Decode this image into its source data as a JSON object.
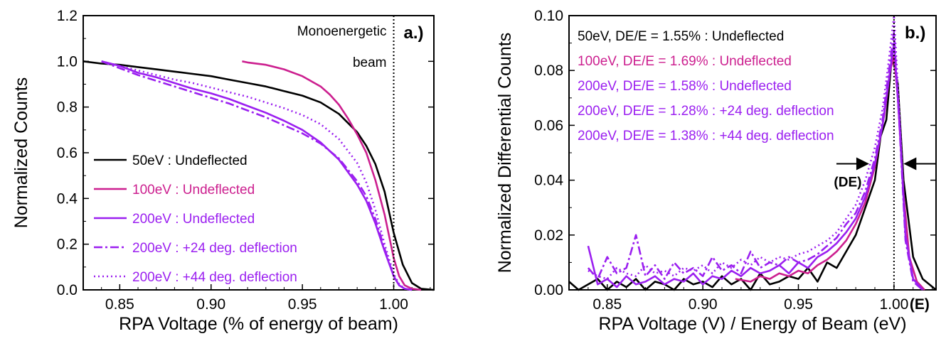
{
  "chart_data": [
    {
      "type": "line",
      "panel_label": "a.)",
      "xlabel": "RPA Voltage (% of energy of beam)",
      "ylabel": "Normalized Counts",
      "xlim": [
        0.83,
        1.022
      ],
      "ylim": [
        0.0,
        1.2
      ],
      "xticks": [
        "0.85",
        "0.90",
        "0.95",
        "1.00"
      ],
      "yticks": [
        "0.0",
        "0.2",
        "0.4",
        "0.6",
        "0.8",
        "1.0",
        "1.2"
      ],
      "legend_position": "lower-left",
      "annotation": {
        "text_line1": "Monoenergetic",
        "text_line2": "beam",
        "x": 1.0
      },
      "series": [
        {
          "name": "50eV : Undeflected",
          "color": "#000000",
          "dash": "solid",
          "x": [
            0.83,
            0.84,
            0.85,
            0.86,
            0.87,
            0.88,
            0.89,
            0.9,
            0.91,
            0.92,
            0.93,
            0.94,
            0.95,
            0.96,
            0.97,
            0.975,
            0.98,
            0.985,
            0.99,
            0.995,
            1.0,
            1.005,
            1.01,
            1.015,
            1.022
          ],
          "y": [
            1.0,
            0.99,
            0.985,
            0.975,
            0.965,
            0.955,
            0.945,
            0.935,
            0.92,
            0.905,
            0.89,
            0.87,
            0.85,
            0.82,
            0.77,
            0.73,
            0.69,
            0.63,
            0.55,
            0.43,
            0.25,
            0.11,
            0.03,
            0.005,
            0.0
          ]
        },
        {
          "name": "100eV : Undeflected",
          "color": "#cc1f8f",
          "dash": "solid",
          "x": [
            0.917,
            0.92,
            0.93,
            0.94,
            0.95,
            0.96,
            0.965,
            0.97,
            0.975,
            0.98,
            0.985,
            0.99,
            0.995,
            1.0,
            1.003,
            1.006,
            1.01,
            1.015
          ],
          "y": [
            1.0,
            0.995,
            0.985,
            0.965,
            0.935,
            0.89,
            0.855,
            0.81,
            0.75,
            0.68,
            0.6,
            0.48,
            0.33,
            0.14,
            0.06,
            0.02,
            0.005,
            0.0
          ]
        },
        {
          "name": "200eV : Undeflected",
          "color": "#9b1ff0",
          "dash": "solid",
          "x": [
            0.84,
            0.85,
            0.86,
            0.87,
            0.88,
            0.89,
            0.9,
            0.91,
            0.92,
            0.93,
            0.94,
            0.95,
            0.96,
            0.97,
            0.98,
            0.985,
            0.99,
            0.995,
            1.0,
            1.003,
            1.006,
            1.01
          ],
          "y": [
            1.0,
            0.98,
            0.95,
            0.93,
            0.905,
            0.88,
            0.86,
            0.835,
            0.805,
            0.775,
            0.74,
            0.7,
            0.645,
            0.57,
            0.46,
            0.39,
            0.29,
            0.17,
            0.06,
            0.02,
            0.005,
            0.0
          ]
        },
        {
          "name": "200eV : +24 deg. deflection",
          "color": "#9b1ff0",
          "dash": "dashdot",
          "x": [
            0.84,
            0.85,
            0.86,
            0.87,
            0.88,
            0.89,
            0.9,
            0.91,
            0.92,
            0.93,
            0.94,
            0.95,
            0.96,
            0.97,
            0.98,
            0.985,
            0.99,
            0.995,
            1.0,
            1.003,
            1.006,
            1.01
          ],
          "y": [
            1.0,
            0.97,
            0.94,
            0.915,
            0.89,
            0.865,
            0.84,
            0.815,
            0.785,
            0.755,
            0.72,
            0.685,
            0.64,
            0.575,
            0.475,
            0.41,
            0.31,
            0.18,
            0.06,
            0.02,
            0.005,
            0.0
          ]
        },
        {
          "name": "200eV : +44 deg. deflection",
          "color": "#9b1ff0",
          "dash": "dotted",
          "x": [
            0.84,
            0.85,
            0.86,
            0.87,
            0.88,
            0.89,
            0.9,
            0.91,
            0.92,
            0.93,
            0.94,
            0.95,
            0.96,
            0.97,
            0.98,
            0.985,
            0.99,
            0.995,
            1.0,
            1.003,
            1.006,
            1.01
          ],
          "y": [
            1.0,
            0.98,
            0.96,
            0.94,
            0.92,
            0.905,
            0.885,
            0.865,
            0.845,
            0.82,
            0.795,
            0.765,
            0.725,
            0.66,
            0.555,
            0.47,
            0.35,
            0.2,
            0.07,
            0.025,
            0.005,
            0.0
          ]
        }
      ]
    },
    {
      "type": "line",
      "panel_label": "b.)",
      "xlabel": "RPA Voltage (V) / Energy of Beam (eV)",
      "ylabel": "Normalized Differential Counts",
      "xlim": [
        0.83,
        1.022
      ],
      "ylim": [
        0.0,
        0.1
      ],
      "xticks": [
        "0.85",
        "0.90",
        "0.95",
        "1.00"
      ],
      "xtick_extra": "(E)",
      "yticks": [
        "0.00",
        "0.02",
        "0.04",
        "0.06",
        "0.08",
        "0.10"
      ],
      "legend_position": "top-left",
      "annotation": {
        "text": "(DE)",
        "x_left": 0.987,
        "x_right": 1.005,
        "y": 0.046
      },
      "series": [
        {
          "name": "50eV, DE/E = 1.55% : Undeflected",
          "color": "#000000",
          "dash": "solid",
          "x": [
            0.83,
            0.835,
            0.84,
            0.845,
            0.85,
            0.855,
            0.86,
            0.865,
            0.87,
            0.875,
            0.88,
            0.885,
            0.89,
            0.895,
            0.9,
            0.905,
            0.91,
            0.915,
            0.92,
            0.925,
            0.93,
            0.935,
            0.94,
            0.945,
            0.95,
            0.955,
            0.96,
            0.965,
            0.97,
            0.975,
            0.98,
            0.985,
            0.99,
            0.993,
            0.996,
            0.999,
            1.002,
            1.005,
            1.01,
            1.015,
            1.022
          ],
          "y": [
            0.003,
            0.0,
            0.002,
            0.004,
            0.0,
            0.003,
            0.001,
            0.004,
            0.0,
            0.003,
            0.002,
            0.0,
            0.004,
            0.002,
            0.003,
            0.001,
            0.005,
            0.002,
            0.004,
            0.0,
            0.006,
            0.002,
            0.003,
            0.005,
            0.004,
            0.008,
            0.003,
            0.01,
            0.008,
            0.014,
            0.02,
            0.03,
            0.04,
            0.056,
            0.062,
            0.086,
            0.075,
            0.04,
            0.012,
            0.004,
            0.0
          ]
        },
        {
          "name": "100eV, DE/E = 1.69% : Undeflected",
          "color": "#cc1f8f",
          "dash": "solid",
          "x": [
            0.917,
            0.925,
            0.93,
            0.935,
            0.94,
            0.945,
            0.95,
            0.955,
            0.96,
            0.965,
            0.97,
            0.975,
            0.98,
            0.985,
            0.99,
            0.995,
            0.998,
            1.0,
            1.002,
            1.005,
            1.008,
            1.012,
            1.016
          ],
          "y": [
            0.004,
            0.003,
            0.005,
            0.004,
            0.006,
            0.005,
            0.007,
            0.006,
            0.009,
            0.011,
            0.014,
            0.018,
            0.024,
            0.032,
            0.045,
            0.064,
            0.08,
            0.085,
            0.07,
            0.035,
            0.012,
            0.003,
            0.0
          ]
        },
        {
          "name": "200eV, DE/E = 1.58% : Undeflected",
          "color": "#9b1ff0",
          "dash": "solid",
          "x": [
            0.84,
            0.845,
            0.85,
            0.855,
            0.86,
            0.865,
            0.87,
            0.875,
            0.88,
            0.885,
            0.89,
            0.895,
            0.9,
            0.905,
            0.91,
            0.915,
            0.92,
            0.925,
            0.93,
            0.935,
            0.94,
            0.945,
            0.95,
            0.955,
            0.96,
            0.965,
            0.97,
            0.975,
            0.98,
            0.985,
            0.99,
            0.994,
            0.997,
            1.0,
            1.003,
            1.006,
            1.01,
            1.015
          ],
          "y": [
            0.016,
            0.002,
            0.004,
            0.001,
            0.005,
            0.002,
            0.003,
            0.005,
            0.002,
            0.004,
            0.003,
            0.006,
            0.002,
            0.005,
            0.004,
            0.007,
            0.005,
            0.008,
            0.006,
            0.007,
            0.009,
            0.006,
            0.01,
            0.008,
            0.012,
            0.014,
            0.017,
            0.021,
            0.026,
            0.034,
            0.046,
            0.06,
            0.075,
            0.09,
            0.06,
            0.02,
            0.004,
            0.0
          ]
        },
        {
          "name": "200eV, DE/E = 1.28% : +24 deg. deflection",
          "color": "#9b1ff0",
          "dash": "dashdot",
          "x": [
            0.84,
            0.845,
            0.85,
            0.855,
            0.86,
            0.865,
            0.87,
            0.875,
            0.88,
            0.885,
            0.89,
            0.895,
            0.9,
            0.905,
            0.91,
            0.915,
            0.92,
            0.925,
            0.93,
            0.935,
            0.94,
            0.945,
            0.95,
            0.955,
            0.96,
            0.965,
            0.97,
            0.975,
            0.98,
            0.985,
            0.99,
            0.994,
            0.997,
            1.0,
            1.003,
            1.006,
            1.01,
            1.015
          ],
          "y": [
            0.008,
            0.004,
            0.012,
            0.006,
            0.008,
            0.02,
            0.005,
            0.009,
            0.004,
            0.01,
            0.006,
            0.008,
            0.005,
            0.012,
            0.007,
            0.009,
            0.006,
            0.014,
            0.008,
            0.01,
            0.009,
            0.012,
            0.01,
            0.011,
            0.013,
            0.016,
            0.019,
            0.024,
            0.028,
            0.036,
            0.048,
            0.062,
            0.078,
            0.094,
            0.058,
            0.018,
            0.003,
            0.0
          ]
        },
        {
          "name": "200eV, DE/E = 1.38% : +44 deg. deflection",
          "color": "#9b1ff0",
          "dash": "dotted",
          "x": [
            0.84,
            0.845,
            0.85,
            0.855,
            0.86,
            0.865,
            0.87,
            0.875,
            0.88,
            0.885,
            0.89,
            0.895,
            0.9,
            0.905,
            0.91,
            0.915,
            0.92,
            0.925,
            0.93,
            0.935,
            0.94,
            0.945,
            0.95,
            0.955,
            0.96,
            0.965,
            0.97,
            0.975,
            0.98,
            0.985,
            0.99,
            0.994,
            0.997,
            1.0,
            1.003,
            1.006,
            1.01,
            1.015
          ],
          "y": [
            0.007,
            0.005,
            0.004,
            0.008,
            0.006,
            0.005,
            0.009,
            0.006,
            0.007,
            0.005,
            0.008,
            0.007,
            0.009,
            0.006,
            0.01,
            0.008,
            0.011,
            0.009,
            0.012,
            0.01,
            0.012,
            0.011,
            0.013,
            0.014,
            0.016,
            0.018,
            0.021,
            0.026,
            0.031,
            0.04,
            0.052,
            0.066,
            0.082,
            0.1,
            0.062,
            0.02,
            0.004,
            0.0
          ]
        }
      ]
    }
  ]
}
